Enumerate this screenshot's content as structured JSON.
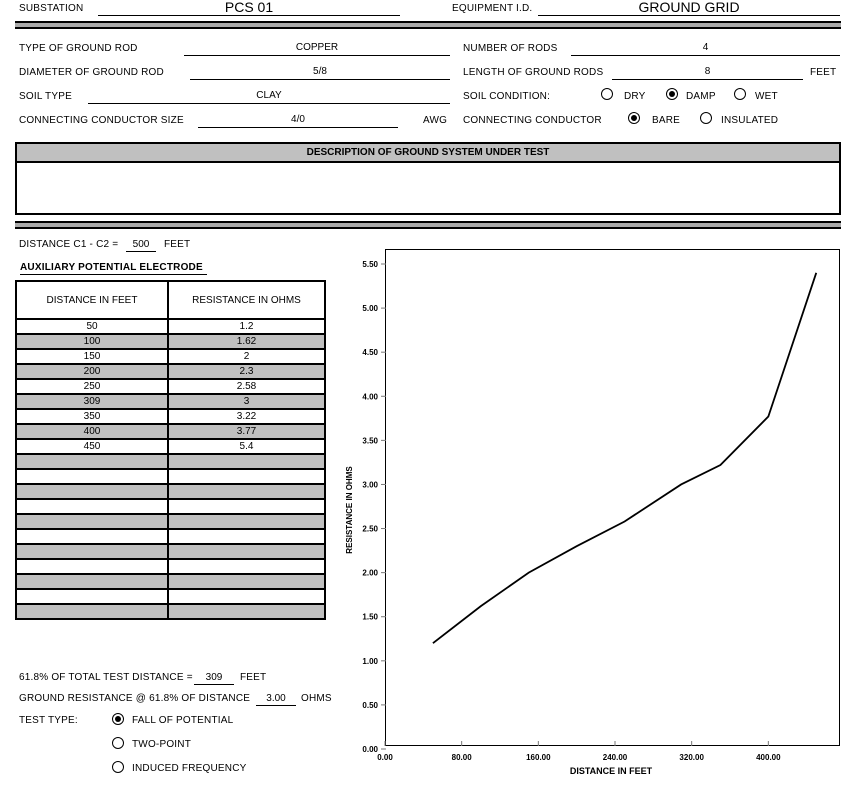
{
  "header": {
    "substation_label": "SUBSTATION",
    "substation_value": "PCS 01",
    "equipment_label": "EQUIPMENT I.D.",
    "equipment_value": "GROUND GRID"
  },
  "fields": {
    "rod_type_label": "TYPE OF GROUND ROD",
    "rod_type_value": "COPPER",
    "num_rods_label": "NUMBER OF RODS",
    "num_rods_value": "4",
    "rod_diam_label": "DIAMETER OF GROUND ROD",
    "rod_diam_value": "5/8",
    "rod_length_label": "LENGTH OF GROUND RODS",
    "rod_length_value": "8",
    "rod_length_unit": "FEET",
    "soil_type_label": "SOIL TYPE",
    "soil_type_value": "CLAY",
    "soil_cond_label": "SOIL CONDITION:",
    "soil_dry": "DRY",
    "soil_damp": "DAMP",
    "soil_wet": "WET",
    "conductor_size_label": "CONNECTING CONDUCTOR SIZE",
    "conductor_size_value": "4/0",
    "conductor_size_unit": "AWG",
    "conductor_label": "CONNECTING  CONDUCTOR",
    "conductor_bare": "BARE",
    "conductor_insulated": "INSULATED"
  },
  "description": {
    "header": "DESCRIPTION OF GROUND SYSTEM UNDER TEST",
    "text": ""
  },
  "test": {
    "distance_label": "DISTANCE C1 - C2 =",
    "distance_value": "500",
    "distance_unit": "FEET",
    "aux_label": "AUXILIARY POTENTIAL ELECTRODE",
    "col_distance": "DISTANCE IN FEET",
    "col_resistance": "RESISTANCE IN OHMS",
    "rows": [
      [
        "50",
        "1.2"
      ],
      [
        "100",
        "1.62"
      ],
      [
        "150",
        "2"
      ],
      [
        "200",
        "2.3"
      ],
      [
        "250",
        "2.58"
      ],
      [
        "309",
        "3"
      ],
      [
        "350",
        "3.22"
      ],
      [
        "400",
        "3.77"
      ],
      [
        "450",
        "5.4"
      ],
      [
        "",
        ""
      ],
      [
        "",
        ""
      ],
      [
        "",
        ""
      ],
      [
        "",
        ""
      ],
      [
        "",
        ""
      ],
      [
        "",
        ""
      ],
      [
        "",
        ""
      ],
      [
        "",
        ""
      ],
      [
        "",
        ""
      ],
      [
        "",
        ""
      ],
      [
        "",
        ""
      ]
    ],
    "pct_label": "61.8% OF TOTAL TEST DISTANCE =",
    "pct_value": "309",
    "pct_unit": "FEET",
    "res_label": "GROUND RESISTANCE @ 61.8% OF DISTANCE",
    "res_value": "3.00",
    "res_unit": "OHMS",
    "type_label": "TEST TYPE:",
    "type_fall": "FALL OF POTENTIAL",
    "type_two": "TWO-POINT",
    "type_induced": "INDUCED  FREQUENCY"
  },
  "chart_data": {
    "type": "line",
    "xlabel": "DISTANCE IN FEET",
    "ylabel": "RESISTANCE IN OHMS",
    "x": [
      50,
      100,
      150,
      200,
      250,
      309,
      350,
      400,
      450
    ],
    "y": [
      1.2,
      1.62,
      2,
      2.3,
      2.58,
      3,
      3.22,
      3.77,
      5.4
    ],
    "xlim": [
      0,
      480
    ],
    "ylim": [
      0,
      5.5
    ],
    "xticks": [
      "0.00",
      "80.00",
      "160.00",
      "240.00",
      "320.00",
      "400.00"
    ],
    "xtick_values": [
      0,
      80,
      160,
      240,
      320,
      400
    ],
    "yticks": [
      "0.00",
      "0.50",
      "1.00",
      "1.50",
      "2.00",
      "2.50",
      "3.00",
      "3.50",
      "4.00",
      "4.50",
      "5.00",
      "5.50"
    ],
    "ytick_values": [
      0,
      0.5,
      1,
      1.5,
      2,
      2.5,
      3,
      3.5,
      4,
      4.5,
      5,
      5.5
    ],
    "grid": false
  }
}
